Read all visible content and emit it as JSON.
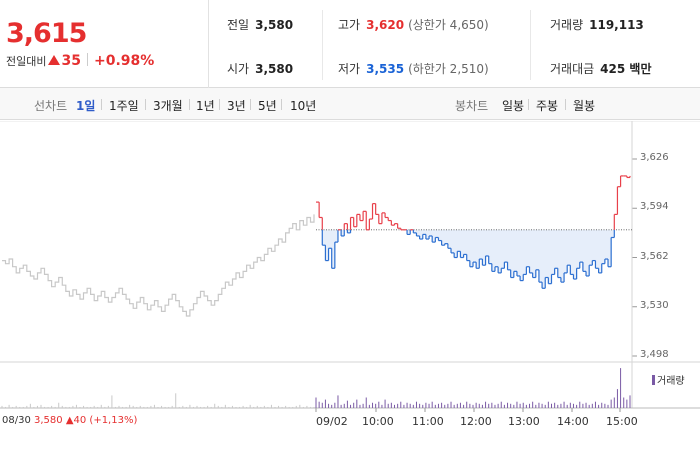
{
  "quote": {
    "price": "3,615",
    "change_label": "전일대비",
    "change_amount": "35",
    "change_percent": "+0.98%"
  },
  "stats": {
    "prev_close": {
      "label": "전일",
      "value": "3,580"
    },
    "open": {
      "label": "시가",
      "value": "3,580"
    },
    "high": {
      "label": "고가",
      "value": "3,620",
      "limit": "(상한가 4,650)"
    },
    "low": {
      "label": "저가",
      "value": "3,535",
      "limit": "(하한가 2,510)"
    },
    "volume": {
      "label": "거래량",
      "value": "119,113"
    },
    "turnover": {
      "label": "거래대금",
      "value": "425 백만"
    }
  },
  "toolbar": {
    "line_chart_label": "선차트",
    "line_periods": [
      "1일",
      "1주일",
      "3개월",
      "1년",
      "3년",
      "5년",
      "10년"
    ],
    "active_period": "1일",
    "candle_chart_label": "봉차트",
    "candle_periods": [
      "일봉",
      "주봉",
      "월봉"
    ]
  },
  "chart_data": {
    "type": "line",
    "y_ticks": [
      "3,626",
      "3,594",
      "3,562",
      "3,530",
      "3,498"
    ],
    "ylim": [
      3498,
      3626
    ],
    "x_ticks": [
      "09/02",
      "10:00",
      "11:00",
      "12:00",
      "13:00",
      "14:00",
      "15:00"
    ],
    "prev_close_note": {
      "date": "08/30",
      "text": "3,580 ▲40 (+1,13%)"
    },
    "baseline": 3580,
    "volume_label": "거래량",
    "colors": {
      "up": "#e8404a",
      "down": "#2c6fd1",
      "prior": "#c8c8c8",
      "fill": "#e6eefa",
      "volume": "#7a5aa5"
    },
    "prior_day": [
      3560,
      3558,
      3561,
      3556,
      3552,
      3555,
      3557,
      3553,
      3550,
      3548,
      3552,
      3555,
      3551,
      3547,
      3543,
      3546,
      3549,
      3544,
      3540,
      3537,
      3541,
      3538,
      3535,
      3539,
      3542,
      3538,
      3534,
      3537,
      3540,
      3536,
      3533,
      3536,
      3539,
      3542,
      3538,
      3535,
      3532,
      3529,
      3533,
      3536,
      3532,
      3528,
      3531,
      3534,
      3530,
      3527,
      3531,
      3535,
      3538,
      3534,
      3530,
      3527,
      3524,
      3528,
      3532,
      3536,
      3540,
      3537,
      3534,
      3531,
      3534,
      3538,
      3542,
      3546,
      3544,
      3548,
      3552,
      3549,
      3553,
      3557,
      3555,
      3559,
      3562,
      3560,
      3564,
      3568,
      3566,
      3570,
      3574,
      3572,
      3578,
      3581,
      3584,
      3580,
      3586,
      3583,
      3588,
      3585,
      3590
    ],
    "today": [
      3598,
      3588,
      3570,
      3560,
      3568,
      3555,
      3572,
      3580,
      3576,
      3584,
      3578,
      3588,
      3582,
      3590,
      3586,
      3592,
      3580,
      3587,
      3597,
      3590,
      3584,
      3591,
      3588,
      3586,
      3583,
      3584,
      3581,
      3580,
      3580,
      3577,
      3580,
      3578,
      3576,
      3574,
      3577,
      3574,
      3576,
      3572,
      3575,
      3573,
      3570,
      3571,
      3568,
      3565,
      3562,
      3566,
      3562,
      3564,
      3560,
      3556,
      3559,
      3555,
      3561,
      3557,
      3563,
      3558,
      3553,
      3556,
      3552,
      3555,
      3559,
      3554,
      3549,
      3553,
      3550,
      3547,
      3551,
      3556,
      3552,
      3549,
      3554,
      3546,
      3542,
      3549,
      3545,
      3551,
      3555,
      3549,
      3546,
      3552,
      3557,
      3551,
      3548,
      3555,
      3559,
      3553,
      3550,
      3557,
      3560,
      3555,
      3552,
      3558,
      3561,
      3556,
      3575,
      3590,
      3608,
      3615,
      3615,
      3614,
      3615
    ],
    "volume_prior": [
      2,
      1,
      3,
      1,
      2,
      1,
      1,
      2,
      4,
      1,
      2,
      3,
      1,
      1,
      2,
      1,
      5,
      2,
      1,
      1,
      2,
      3,
      1,
      2,
      1,
      1,
      2,
      1,
      3,
      1,
      2,
      12,
      1,
      2,
      1,
      1,
      3,
      2,
      1,
      2,
      1,
      1,
      2,
      3,
      1,
      2,
      1,
      1,
      2,
      14,
      1,
      2,
      1,
      3,
      1,
      2,
      1,
      1,
      2,
      1,
      4,
      2,
      1,
      3,
      1,
      2,
      1,
      1,
      2,
      1,
      3,
      1,
      2,
      1,
      2,
      1,
      3,
      1,
      2,
      1,
      2,
      1,
      1,
      2,
      3,
      1,
      2,
      1,
      1
    ],
    "volume_today": [
      10,
      6,
      5,
      8,
      4,
      3,
      5,
      12,
      3,
      4,
      7,
      3,
      5,
      8,
      3,
      4,
      10,
      3,
      5,
      4,
      6,
      3,
      8,
      4,
      5,
      3,
      4,
      6,
      3,
      5,
      4,
      3,
      6,
      4,
      3,
      5,
      4,
      6,
      3,
      4,
      5,
      3,
      4,
      6,
      3,
      4,
      5,
      3,
      6,
      4,
      3,
      5,
      4,
      3,
      6,
      4,
      5,
      3,
      4,
      6,
      3,
      5,
      4,
      3,
      6,
      4,
      5,
      3,
      4,
      6,
      3,
      5,
      4,
      3,
      6,
      4,
      5,
      3,
      4,
      6,
      3,
      5,
      4,
      3,
      6,
      4,
      5,
      3,
      4,
      6,
      3,
      5,
      4,
      3,
      8,
      10,
      18,
      38,
      10,
      8,
      12
    ]
  }
}
